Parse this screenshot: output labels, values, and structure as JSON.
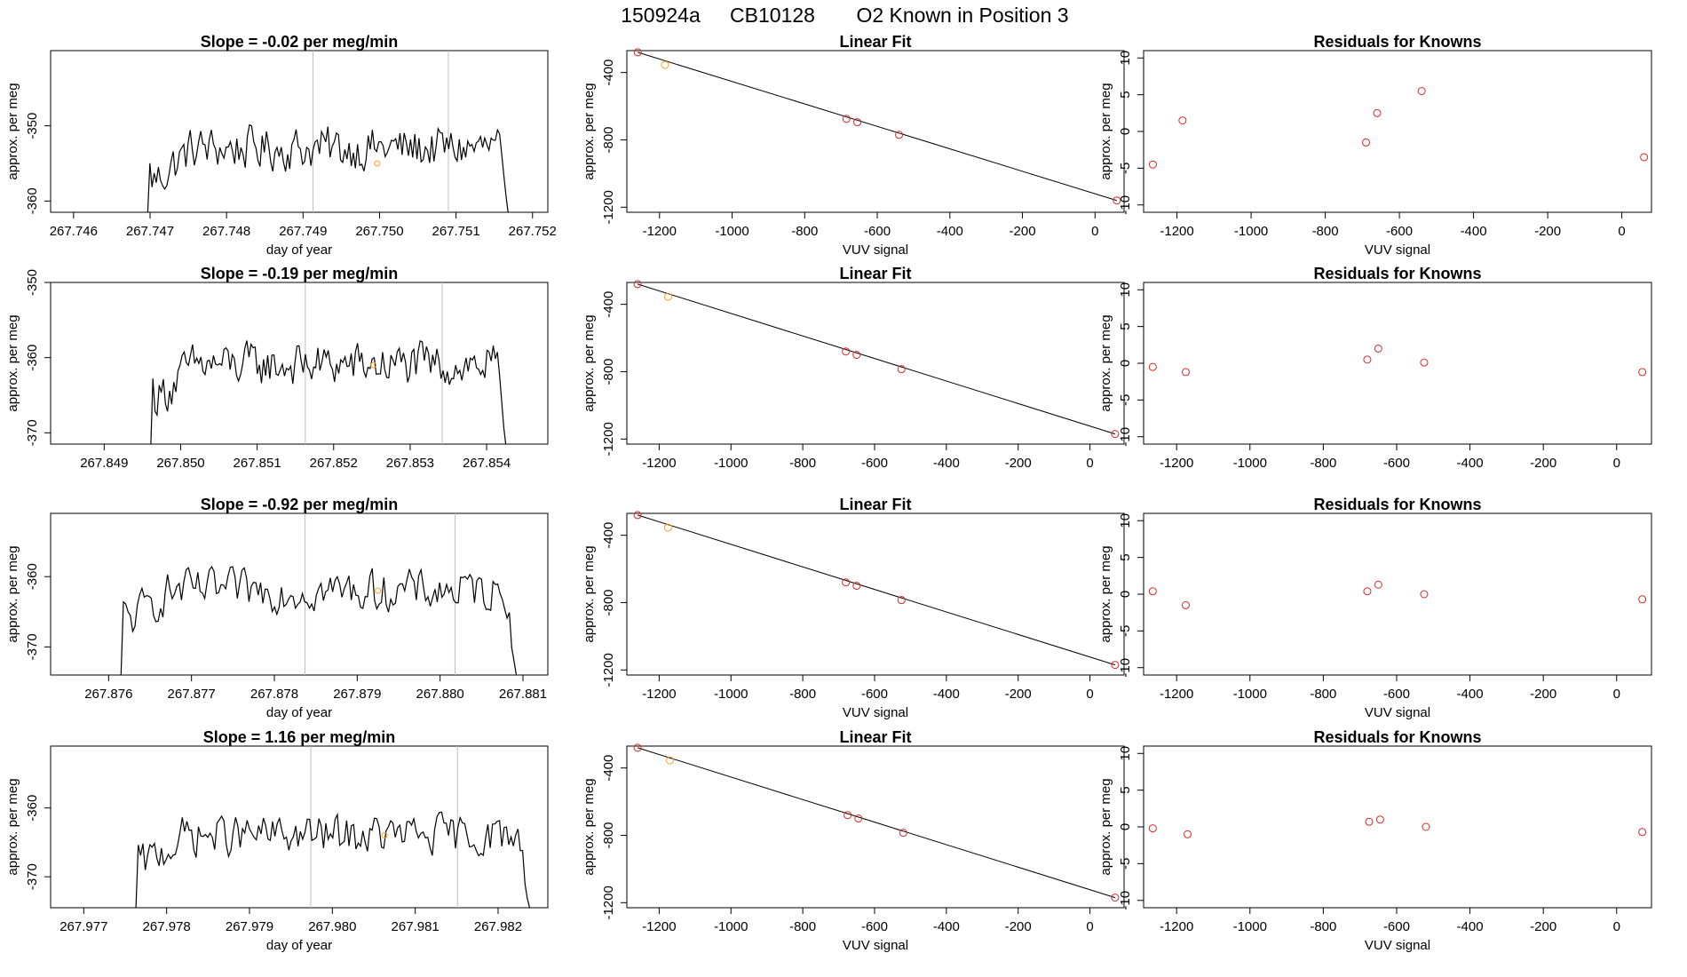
{
  "figure": {
    "title_parts": [
      "150924a",
      "CB10128",
      "O2 Known in Position  3"
    ]
  },
  "rows": [
    {
      "time_panel": {
        "title": "Slope =  -0.02  per meg/min",
        "xlabel": "day of year",
        "ylabel": "approx. per meg",
        "xticks": [
          "267.746",
          "267.747",
          "267.748",
          "267.749",
          "267.750",
          "267.751",
          "267.752"
        ],
        "yticks": [
          "-350",
          "-360"
        ]
      },
      "fit_panel": {
        "title": "Linear Fit",
        "xlabel": "VUV signal",
        "ylabel": "approx. per meg",
        "xticks": [
          "-1200",
          "-1000",
          "-800",
          "-600",
          "-400",
          "-200",
          "0"
        ],
        "yticks": [
          "-400",
          "-800",
          "-1200"
        ]
      },
      "resid_panel": {
        "title": "Residuals for Knowns",
        "xlabel": "VUV signal",
        "ylabel": "approx. per meg",
        "xticks": [
          "-1200",
          "-1000",
          "-800",
          "-600",
          "-400",
          "-200",
          "0"
        ],
        "yticks": [
          "10",
          "5",
          "0",
          "-5",
          "-10"
        ]
      }
    },
    {
      "time_panel": {
        "title": "Slope =  -0.19  per meg/min",
        "xlabel": "",
        "ylabel": "approx. per meg",
        "xticks": [
          "267.849",
          "267.850",
          "267.851",
          "267.852",
          "267.853",
          "267.854"
        ],
        "yticks": [
          "-350",
          "-360",
          "-370"
        ]
      },
      "fit_panel": {
        "title": "Linear Fit",
        "xlabel": "",
        "ylabel": "approx. per meg",
        "xticks": [
          "-1200",
          "-1000",
          "-800",
          "-600",
          "-400",
          "-200",
          "0"
        ],
        "yticks": [
          "-400",
          "-800",
          "-1200"
        ]
      },
      "resid_panel": {
        "title": "Residuals for Knowns",
        "xlabel": "",
        "ylabel": "approx. per meg",
        "xticks": [
          "-1200",
          "-1000",
          "-800",
          "-600",
          "-400",
          "-200",
          "0"
        ],
        "yticks": [
          "10",
          "5",
          "0",
          "-5",
          "-10"
        ]
      }
    },
    {
      "time_panel": {
        "title": "Slope =  -0.92  per meg/min",
        "xlabel": "day of year",
        "ylabel": "approx. per meg",
        "xticks": [
          "267.876",
          "267.877",
          "267.878",
          "267.879",
          "267.880",
          "267.881"
        ],
        "yticks": [
          "-360",
          "-370"
        ]
      },
      "fit_panel": {
        "title": "Linear Fit",
        "xlabel": "VUV signal",
        "ylabel": "approx. per meg",
        "xticks": [
          "-1200",
          "-1000",
          "-800",
          "-600",
          "-400",
          "-200",
          "0"
        ],
        "yticks": [
          "-400",
          "-800",
          "-1200"
        ]
      },
      "resid_panel": {
        "title": "Residuals for Knowns",
        "xlabel": "VUV signal",
        "ylabel": "approx. per meg",
        "xticks": [
          "-1200",
          "-1000",
          "-800",
          "-600",
          "-400",
          "-200",
          "0"
        ],
        "yticks": [
          "10",
          "5",
          "0",
          "-5",
          "-10"
        ]
      }
    },
    {
      "time_panel": {
        "title": "Slope =  1.16  per meg/min",
        "xlabel": "day of year",
        "ylabel": "approx. per meg",
        "xticks": [
          "267.977",
          "267.978",
          "267.979",
          "267.980",
          "267.981",
          "267.982"
        ],
        "yticks": [
          "-360",
          "-370"
        ]
      },
      "fit_panel": {
        "title": "Linear Fit",
        "xlabel": "VUV signal",
        "ylabel": "approx. per meg",
        "xticks": [
          "-1200",
          "-1000",
          "-800",
          "-600",
          "-400",
          "-200",
          "0"
        ],
        "yticks": [
          "-400",
          "-800",
          "-1200"
        ]
      },
      "resid_panel": {
        "title": "Residuals for Knowns",
        "xlabel": "VUV signal",
        "ylabel": "approx. per meg",
        "xticks": [
          "-1200",
          "-1000",
          "-800",
          "-600",
          "-400",
          "-200",
          "0"
        ],
        "yticks": [
          "10",
          "5",
          "0",
          "-5",
          "-10"
        ]
      }
    }
  ],
  "colors": {
    "series_line": "#000000",
    "known_point": "#d62728",
    "unknown_point": "#ff9e1f",
    "fit_line": "#000000",
    "vertical_marker": "#bebebe",
    "axis": "#000000"
  },
  "chart_data": [
    {
      "type": "line",
      "title": "Slope =  -0.02  per meg/min",
      "xlabel": "day of year",
      "ylabel": "approx. per meg",
      "xlim": [
        267.7457,
        267.7522
      ],
      "ylim": [
        -361.5,
        -340
      ],
      "grid": false,
      "series": [
        {
          "x_start": 267.74697,
          "x_end": 267.75168,
          "level": -353,
          "min": -361.5,
          "noise": 4
        }
      ],
      "vlines": [
        267.74913,
        267.7509
      ],
      "highlight_point": {
        "x": 267.74997,
        "y": -355
      }
    },
    {
      "type": "scatter",
      "title": "Linear Fit",
      "xlabel": "VUV signal",
      "ylabel": "approx. per meg",
      "xlim": [
        -1290,
        80
      ],
      "ylim": [
        -1230,
        -270
      ],
      "grid": false,
      "points": [
        {
          "x": -1260,
          "y": -280,
          "known": true
        },
        {
          "x": -1185,
          "y": -355,
          "known": false
        },
        {
          "x": -685,
          "y": -675,
          "known": true
        },
        {
          "x": -655,
          "y": -695,
          "known": true
        },
        {
          "x": -540,
          "y": -770,
          "known": true
        },
        {
          "x": 60,
          "y": -1160,
          "known": true
        }
      ],
      "fit_line": {
        "x": [
          -1260,
          60
        ],
        "y": [
          -280,
          -1160
        ]
      }
    },
    {
      "type": "scatter",
      "title": "Residuals for Knowns",
      "xlabel": "VUV signal",
      "ylabel": "approx. per meg",
      "xlim": [
        -1290,
        80
      ],
      "ylim": [
        -11,
        11
      ],
      "grid": false,
      "points": [
        {
          "x": -1265,
          "y": -4.5
        },
        {
          "x": -1185,
          "y": 1.5
        },
        {
          "x": -690,
          "y": -1.5
        },
        {
          "x": -660,
          "y": 2.5
        },
        {
          "x": -540,
          "y": 5.5
        },
        {
          "x": 60,
          "y": -3.5
        }
      ]
    },
    {
      "type": "line",
      "title": "Slope =  -0.19  per meg/min",
      "xlabel": "",
      "ylabel": "approx. per meg",
      "xlim": [
        267.8483,
        267.8548
      ],
      "ylim": [
        -371.5,
        -350
      ],
      "grid": false,
      "series": [
        {
          "x_start": 267.84961,
          "x_end": 267.85425,
          "level": -361,
          "min": -371.5,
          "noise": 4
        }
      ],
      "vlines": [
        267.85163,
        267.85342
      ],
      "highlight_point": {
        "x": 267.85252,
        "y": -361
      }
    },
    {
      "type": "scatter",
      "title": "Linear Fit",
      "xlabel": "",
      "ylabel": "approx. per meg",
      "xlim": [
        -1290,
        95
      ],
      "ylim": [
        -1230,
        -270
      ],
      "grid": false,
      "points": [
        {
          "x": -1260,
          "y": -280,
          "known": true
        },
        {
          "x": -1175,
          "y": -355,
          "known": false
        },
        {
          "x": -680,
          "y": -680,
          "known": true
        },
        {
          "x": -650,
          "y": -700,
          "known": true
        },
        {
          "x": -525,
          "y": -785,
          "known": true
        },
        {
          "x": 70,
          "y": -1170,
          "known": true
        }
      ],
      "fit_line": {
        "x": [
          -1260,
          70
        ],
        "y": [
          -280,
          -1170
        ]
      }
    },
    {
      "type": "scatter",
      "title": "Residuals for Knowns",
      "xlabel": "",
      "ylabel": "approx. per meg",
      "xlim": [
        -1290,
        95
      ],
      "ylim": [
        -11,
        11
      ],
      "grid": false,
      "points": [
        {
          "x": -1265,
          "y": -0.5
        },
        {
          "x": -1175,
          "y": -1.2
        },
        {
          "x": -680,
          "y": 0.5
        },
        {
          "x": -650,
          "y": 2.0
        },
        {
          "x": -525,
          "y": 0.1
        },
        {
          "x": 70,
          "y": -1.2
        }
      ]
    },
    {
      "type": "line",
      "title": "Slope =  -0.92  per meg/min",
      "xlabel": "day of year",
      "ylabel": "approx. per meg",
      "xlim": [
        267.8753,
        267.8813
      ],
      "ylim": [
        -374,
        -351
      ],
      "grid": false,
      "series": [
        {
          "x_start": 267.87615,
          "x_end": 267.88092,
          "level": -362,
          "min": -374,
          "noise": 4
        }
      ],
      "vlines": [
        267.87837,
        267.88018
      ],
      "highlight_point": {
        "x": 267.87925,
        "y": -362
      }
    },
    {
      "type": "scatter",
      "title": "Linear Fit",
      "xlabel": "VUV signal",
      "ylabel": "approx. per meg",
      "xlim": [
        -1290,
        95
      ],
      "ylim": [
        -1230,
        -270
      ],
      "grid": false,
      "points": [
        {
          "x": -1260,
          "y": -280,
          "known": true
        },
        {
          "x": -1175,
          "y": -355,
          "known": false
        },
        {
          "x": -680,
          "y": -680,
          "known": true
        },
        {
          "x": -650,
          "y": -700,
          "known": true
        },
        {
          "x": -525,
          "y": -785,
          "known": true
        },
        {
          "x": 70,
          "y": -1170,
          "known": true
        }
      ],
      "fit_line": {
        "x": [
          -1260,
          70
        ],
        "y": [
          -280,
          -1170
        ]
      }
    },
    {
      "type": "scatter",
      "title": "Residuals for Knowns",
      "xlabel": "VUV signal",
      "ylabel": "approx. per meg",
      "xlim": [
        -1290,
        95
      ],
      "ylim": [
        -11,
        11
      ],
      "grid": false,
      "points": [
        {
          "x": -1265,
          "y": 0.4
        },
        {
          "x": -1175,
          "y": -1.5
        },
        {
          "x": -680,
          "y": 0.4
        },
        {
          "x": -650,
          "y": 1.3
        },
        {
          "x": -525,
          "y": 0.0
        },
        {
          "x": 70,
          "y": -0.7
        }
      ]
    },
    {
      "type": "line",
      "title": "Slope =  1.16  per meg/min",
      "xlabel": "day of year",
      "ylabel": "approx. per meg",
      "xlim": [
        267.9766,
        267.9826
      ],
      "ylim": [
        -374.5,
        -351
      ],
      "grid": false,
      "series": [
        {
          "x_start": 267.97763,
          "x_end": 267.98238,
          "level": -364,
          "min": -374.5,
          "noise": 4
        }
      ],
      "vlines": [
        267.97974,
        267.98151
      ],
      "highlight_point": {
        "x": 267.98063,
        "y": -364
      }
    },
    {
      "type": "scatter",
      "title": "Linear Fit",
      "xlabel": "VUV signal",
      "ylabel": "approx. per meg",
      "xlim": [
        -1290,
        95
      ],
      "ylim": [
        -1230,
        -270
      ],
      "grid": false,
      "points": [
        {
          "x": -1260,
          "y": -280,
          "known": true
        },
        {
          "x": -1170,
          "y": -355,
          "known": false
        },
        {
          "x": -675,
          "y": -680,
          "known": true
        },
        {
          "x": -645,
          "y": -700,
          "known": true
        },
        {
          "x": -520,
          "y": -785,
          "known": true
        },
        {
          "x": 70,
          "y": -1170,
          "known": true
        }
      ],
      "fit_line": {
        "x": [
          -1260,
          70
        ],
        "y": [
          -280,
          -1170
        ]
      }
    },
    {
      "type": "scatter",
      "title": "Residuals for Knowns",
      "xlabel": "VUV signal",
      "ylabel": "approx. per meg",
      "xlim": [
        -1290,
        95
      ],
      "ylim": [
        -11,
        11
      ],
      "grid": false,
      "points": [
        {
          "x": -1265,
          "y": -0.2
        },
        {
          "x": -1170,
          "y": -1.0
        },
        {
          "x": -675,
          "y": 0.7
        },
        {
          "x": -645,
          "y": 1.0
        },
        {
          "x": -520,
          "y": 0.0
        },
        {
          "x": 70,
          "y": -0.7
        }
      ]
    }
  ]
}
